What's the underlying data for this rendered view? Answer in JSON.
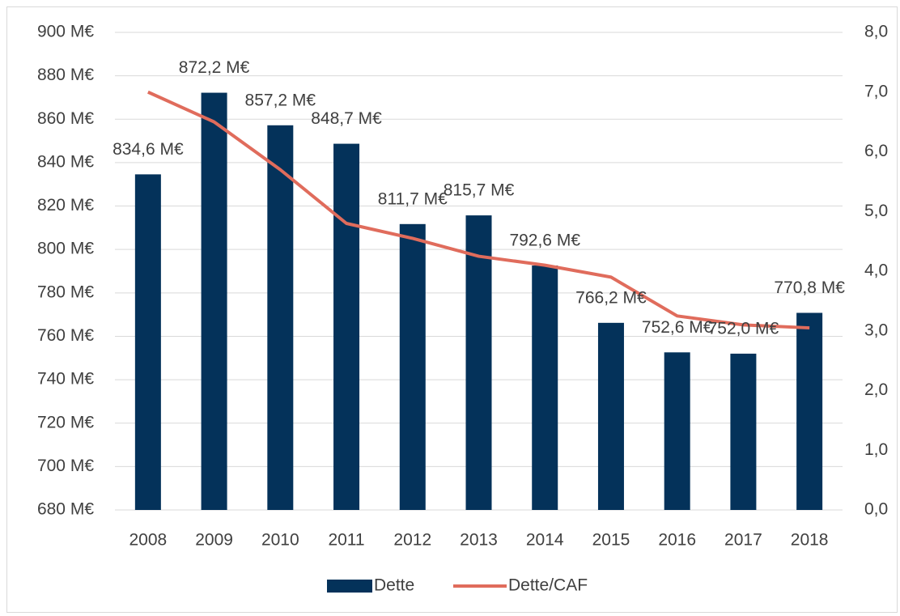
{
  "chart_data": {
    "type": "bar",
    "categories": [
      "2008",
      "2009",
      "2010",
      "2011",
      "2012",
      "2013",
      "2014",
      "2015",
      "2016",
      "2017",
      "2018"
    ],
    "series": [
      {
        "name": "Dette",
        "type": "bar",
        "color": "#04325a",
        "values": [
          834.6,
          872.2,
          857.2,
          848.7,
          811.7,
          815.7,
          792.6,
          766.2,
          752.6,
          752.0,
          770.8
        ],
        "value_labels": [
          "834,6 M€",
          "872,2 M€",
          "857,2 M€",
          "848,7 M€",
          "811,7 M€",
          "815,7 M€",
          "792,6 M€",
          "766,2 M€",
          "752,6 M€",
          "752,0 M€",
          "770,8 M€"
        ]
      },
      {
        "name": "Dette/CAF",
        "type": "line",
        "axis": "y2",
        "color": "#e06c5c",
        "values": [
          7.0,
          6.5,
          5.7,
          4.8,
          4.55,
          4.25,
          4.1,
          3.9,
          3.25,
          3.1,
          3.05
        ]
      }
    ],
    "ylim": [
      680,
      900
    ],
    "yticks": [
      {
        "value": 680,
        "label": "680 M€"
      },
      {
        "value": 700,
        "label": "700 M€"
      },
      {
        "value": 720,
        "label": "720 M€"
      },
      {
        "value": 740,
        "label": "740 M€"
      },
      {
        "value": 760,
        "label": "760 M€"
      },
      {
        "value": 780,
        "label": "780 M€"
      },
      {
        "value": 800,
        "label": "800 M€"
      },
      {
        "value": 820,
        "label": "820 M€"
      },
      {
        "value": 840,
        "label": "840 M€"
      },
      {
        "value": 860,
        "label": "860 M€"
      },
      {
        "value": 880,
        "label": "880 M€"
      },
      {
        "value": 900,
        "label": "900 M€"
      }
    ],
    "y2lim": [
      0,
      8
    ],
    "y2ticks": [
      {
        "value": 0,
        "label": "0,0"
      },
      {
        "value": 1,
        "label": "1,0"
      },
      {
        "value": 2,
        "label": "2,0"
      },
      {
        "value": 3,
        "label": "3,0"
      },
      {
        "value": 4,
        "label": "4,0"
      },
      {
        "value": 5,
        "label": "5,0"
      },
      {
        "value": 6,
        "label": "6,0"
      },
      {
        "value": 7,
        "label": "7,0"
      },
      {
        "value": 8,
        "label": "8,0"
      }
    ],
    "grid": true,
    "legend": "bottom"
  }
}
